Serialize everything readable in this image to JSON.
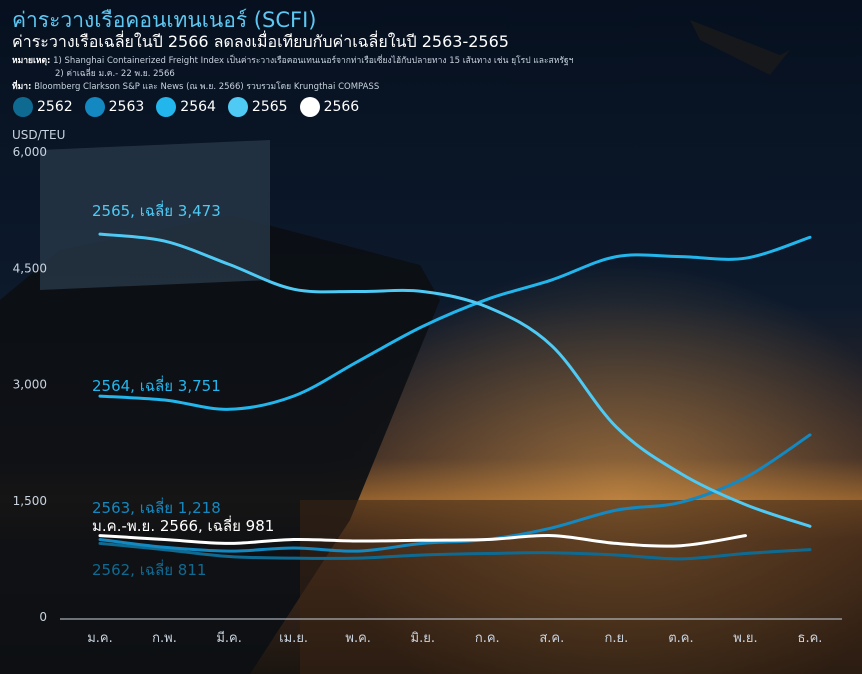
{
  "header": {
    "title": "ค่าระวางเรือคอนเทนเนอร์ (SCFI)",
    "subtitle": "ค่าระวางเรือเฉลี่ยในปี 2566 ลดลงเมื่อเทียบกับค่าเฉลี่ยในปี 2563-2565",
    "note_label": "หมายเหตุ:",
    "note_line1": "1) Shanghai Containerized Freight Index เป็นค่าระวางเรือคอนเทนเนอร์จากท่าเรือเซี่ยงไฮ้กับปลายทาง 15 เส้นทาง เช่น ยุโรป และสหรัฐฯ",
    "note_line2": "2) ค่าเฉลี่ย  ม.ค.- 22 พ.ย. 2566",
    "source_label": "ที่มา:",
    "source_text": "Bloomberg Clarkson S&P และ News (ณ พ.ย. 2566) รวบรวมโดย Krungthai COMPASS"
  },
  "chart_data": {
    "type": "line",
    "ylabel": "USD/TEU",
    "ylim": [
      0,
      6000
    ],
    "yticks": [
      "0",
      "1,500",
      "3,000",
      "4,500",
      "6,000"
    ],
    "categories": [
      "ม.ค.",
      "ก.พ.",
      "มี.ค.",
      "เม.ย.",
      "พ.ค.",
      "มิ.ย.",
      "ก.ค.",
      "ส.ค.",
      "ก.ย.",
      "ต.ค.",
      "พ.ย.",
      "ธ.ค."
    ],
    "series": [
      {
        "name": "2562",
        "color": "#0f6a92",
        "values": [
          950,
          870,
          780,
          760,
          760,
          800,
          820,
          830,
          800,
          750,
          820,
          870
        ]
      },
      {
        "name": "2563",
        "color": "#1488c0",
        "values": [
          1000,
          900,
          850,
          890,
          850,
          950,
          1000,
          1150,
          1380,
          1480,
          1800,
          2350
        ]
      },
      {
        "name": "2564",
        "color": "#23b6ec",
        "values": [
          2850,
          2800,
          2680,
          2850,
          3300,
          3750,
          4100,
          4350,
          4650,
          4650,
          4630,
          4900
        ]
      },
      {
        "name": "2565",
        "color": "#4fcaf4",
        "values": [
          4940,
          4850,
          4550,
          4230,
          4200,
          4200,
          4000,
          3500,
          2450,
          1850,
          1450,
          1170
        ]
      },
      {
        "name": "2566",
        "color": "#ffffff",
        "values": [
          1050,
          1000,
          950,
          1000,
          980,
          990,
          1000,
          1050,
          950,
          920,
          1050,
          null
        ]
      }
    ],
    "annotations": [
      {
        "text": "2565, เฉลี่ย 3,473",
        "color": "#4fcaf4"
      },
      {
        "text": "2564, เฉลี่ย 3,751",
        "color": "#23b6ec"
      },
      {
        "text": "2563, เฉลี่ย 1,218",
        "color": "#1488c0"
      },
      {
        "text": "ม.ค.-พ.ย. 2566, เฉลี่ย 981",
        "color": "#ffffff"
      },
      {
        "text": "2562, เฉลี่ย 811",
        "color": "#0f6a92"
      }
    ]
  }
}
